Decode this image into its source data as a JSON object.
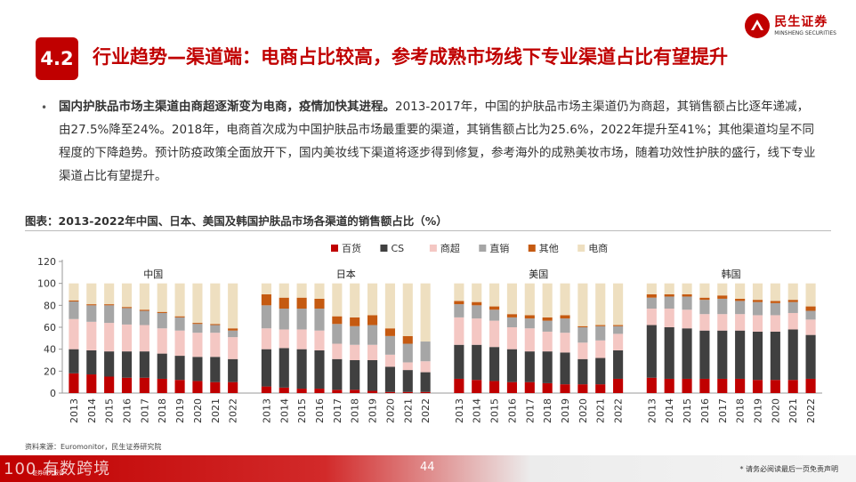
{
  "header": {
    "logo_cn": "民生证券",
    "logo_en": "MINSHENG SECURITIES",
    "section_number": "4.2",
    "title": "行业趋势—渠道端：电商占比较高，参考成熟市场线下专业渠道占比有望提升"
  },
  "bullet": {
    "bold": "国内护肤品市场主渠道由商超逐渐变为电商，疫情加快其进程。",
    "text": "2013-2017年，中国的护肤品市场主渠道仍为商超，其销售额占比逐年递减，由27.5%降至24%。2018年，电商首次成为中国护肤品市场最重要的渠道，其销售额占比为25.6%，2022年提升至41%；其他渠道均呈不同程度的下降趋势。预计防疫政策全面放开下，国内美妆线下渠道将逐步得到修复，参考海外的成熟美妆市场，随着功效性护肤的盛行，线下专业渠道占比有望提升。"
  },
  "figure_title": "图表：2013-2022年中国、日本、美国及韩国护肤品市场各渠道的销售额占比（%）",
  "source": "资料来源：Euromonitor，民生证券研究院",
  "footer": {
    "page": "44",
    "disclaimer": "* 请务必阅读最后一页免责声明",
    "watermark": "100 有数跨境",
    "watermark_small": "证券研究报告"
  },
  "colors": {
    "brand_red": "#c00000",
    "series": [
      "#c00000",
      "#404040",
      "#f4c7c3",
      "#a6a6a6",
      "#c55a11",
      "#eedfc0"
    ]
  },
  "chart_data": {
    "type": "bar",
    "stacked": true,
    "ylim": [
      0,
      120
    ],
    "yticks": [
      0,
      20,
      40,
      60,
      80,
      100,
      120
    ],
    "legend_position": "top-center",
    "grid": false,
    "series_names": [
      "百货",
      "CS",
      "商超",
      "直销",
      "其他",
      "电商"
    ],
    "categories": [
      "2013",
      "2014",
      "2015",
      "2016",
      "2017",
      "2018",
      "2019",
      "2020",
      "2021",
      "2022"
    ],
    "groups": [
      {
        "name": "中国",
        "values": [
          [
            18,
            22,
            27.5,
            16,
            1,
            15.5
          ],
          [
            17,
            22,
            26,
            15,
            1,
            19
          ],
          [
            15,
            23,
            26,
            16,
            1,
            19
          ],
          [
            14,
            24,
            24.5,
            15,
            1,
            21.5
          ],
          [
            14,
            24,
            24,
            13,
            1,
            24
          ],
          [
            13,
            23,
            23,
            14,
            1,
            26
          ],
          [
            12,
            22,
            23,
            12,
            1,
            30
          ],
          [
            11,
            22,
            22,
            8,
            1,
            36
          ],
          [
            10,
            23,
            22,
            7,
            1,
            37
          ],
          [
            10,
            21,
            20,
            6,
            2,
            41
          ]
        ]
      },
      {
        "name": "日本",
        "values": [
          [
            6,
            34,
            19,
            21,
            10,
            10
          ],
          [
            5,
            36,
            17,
            19,
            10,
            13
          ],
          [
            4,
            36,
            18,
            19,
            10,
            13
          ],
          [
            4,
            35,
            18,
            20,
            9,
            14
          ],
          [
            3,
            28,
            14,
            18,
            7,
            30
          ],
          [
            3,
            27,
            14,
            17,
            8,
            31
          ],
          [
            2,
            28,
            14,
            18,
            9,
            29
          ],
          [
            1,
            23,
            11,
            17,
            7,
            41
          ],
          [
            1,
            20,
            7,
            17,
            7,
            48
          ],
          [
            1,
            18,
            10,
            18,
            0,
            53
          ]
        ]
      },
      {
        "name": "美国",
        "values": [
          [
            13,
            31,
            25,
            12,
            3,
            16
          ],
          [
            12,
            32,
            24,
            12,
            3,
            17
          ],
          [
            11,
            31,
            24,
            10,
            3,
            21
          ],
          [
            10,
            30,
            20,
            9,
            3,
            28
          ],
          [
            10,
            28,
            21,
            9,
            3,
            29
          ],
          [
            9,
            29,
            18,
            10,
            3,
            31
          ],
          [
            8,
            29,
            18,
            13,
            3,
            29
          ],
          [
            8,
            23,
            15,
            14,
            1,
            39
          ],
          [
            8,
            24,
            16,
            13,
            1,
            38
          ],
          [
            13,
            26,
            15,
            7,
            1,
            38
          ]
        ]
      },
      {
        "name": "韩国",
        "values": [
          [
            14,
            48,
            15,
            10,
            3,
            10
          ],
          [
            13,
            47,
            17,
            11,
            2,
            10
          ],
          [
            13,
            46,
            17,
            12,
            2,
            10
          ],
          [
            13,
            44,
            15,
            13,
            2,
            13
          ],
          [
            13,
            44,
            15,
            14,
            3,
            11
          ],
          [
            13,
            44,
            15,
            12,
            2,
            14
          ],
          [
            12,
            44,
            15,
            12,
            2,
            15
          ],
          [
            12,
            44,
            15,
            11,
            2,
            16
          ],
          [
            12,
            46,
            15,
            10,
            2,
            15
          ],
          [
            13,
            40,
            14,
            8,
            4,
            21
          ]
        ]
      }
    ]
  }
}
